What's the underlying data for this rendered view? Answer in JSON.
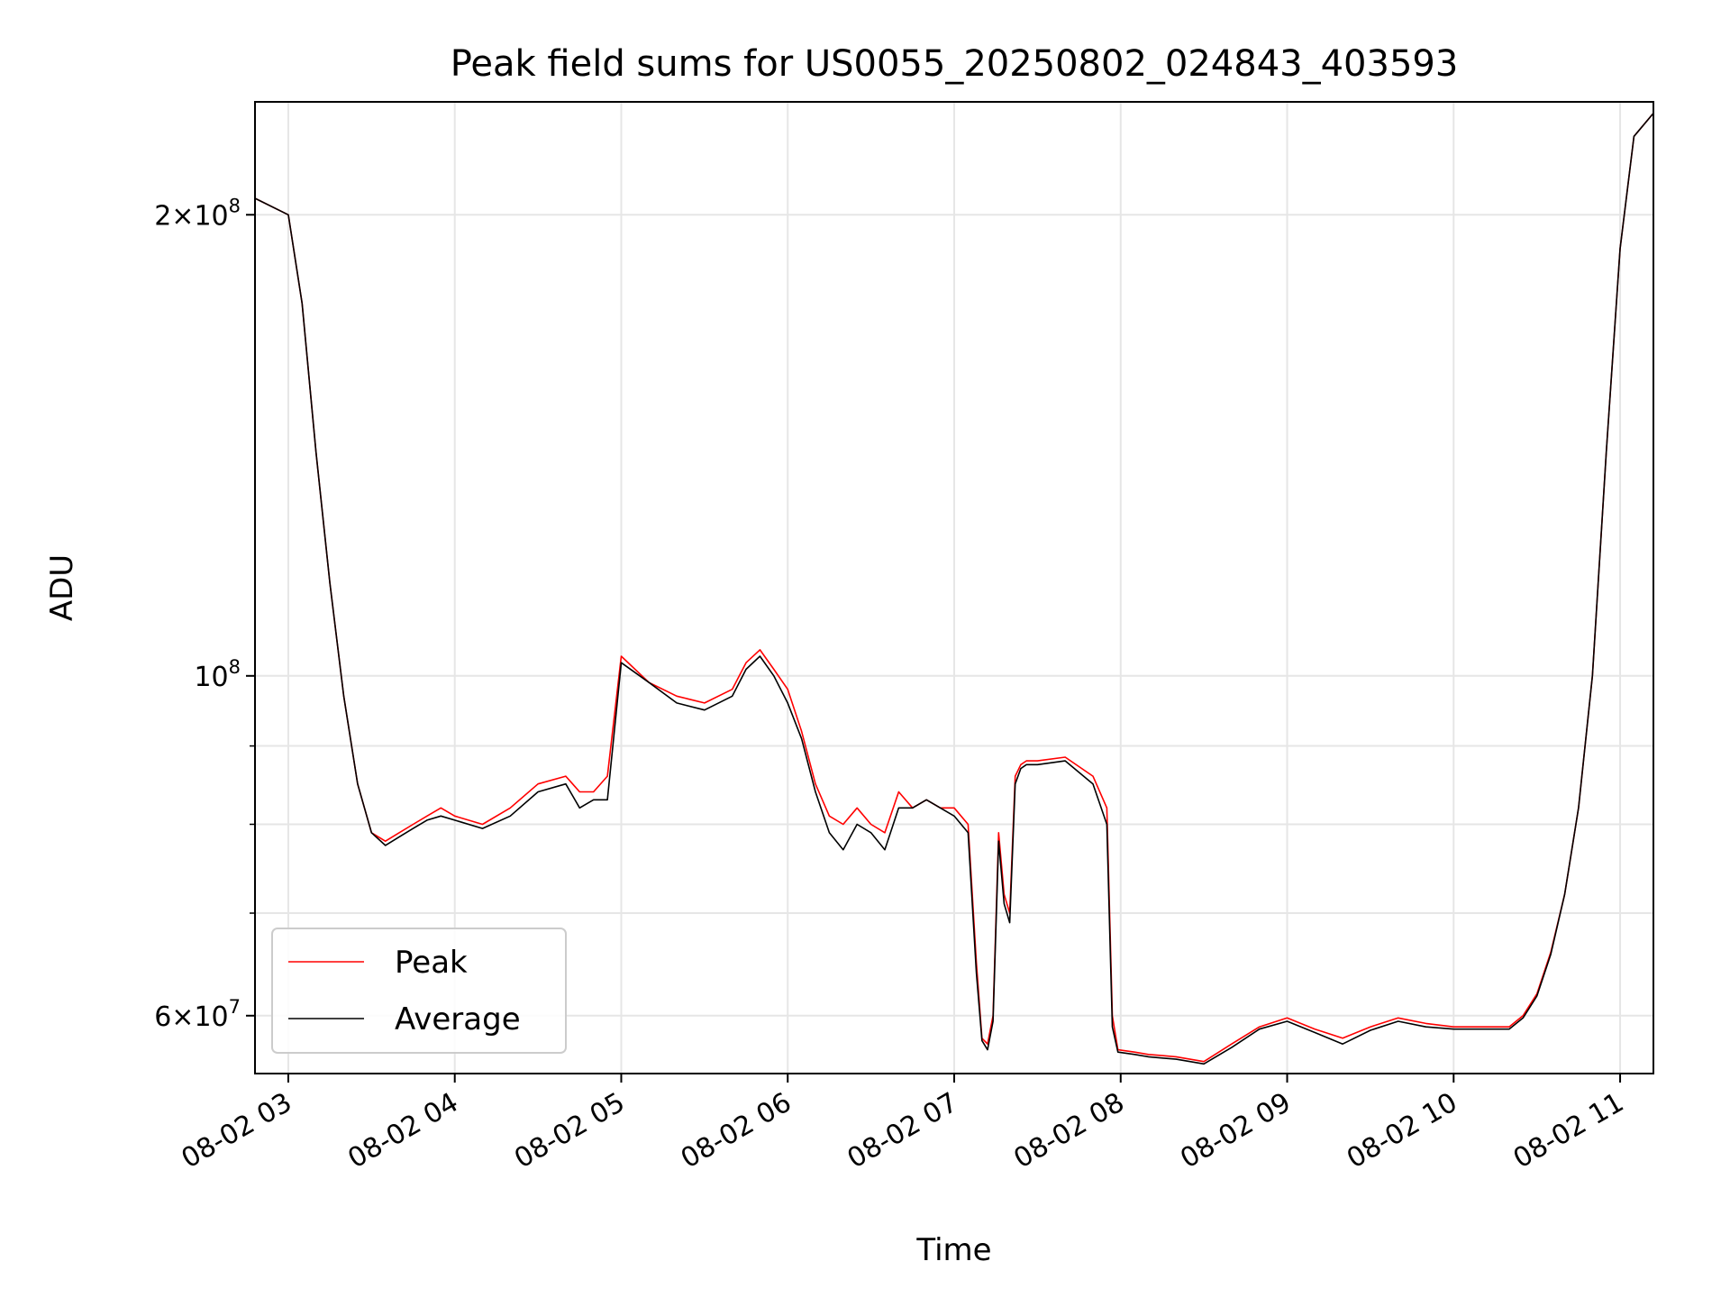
{
  "chart_data": {
    "type": "line",
    "title": "Peak field sums for US0055_20250802_024843_403593",
    "xlabel": "Time",
    "ylabel": "ADU",
    "y_scale": "log",
    "xlim": [
      "2025-08-02 02:48",
      "2025-08-02 11:12"
    ],
    "ylim": [
      55000000,
      237000000
    ],
    "x_tick_labels": [
      "08-02 03",
      "08-02 04",
      "08-02 05",
      "08-02 06",
      "08-02 07",
      "08-02 08",
      "08-02 09",
      "08-02 10",
      "08-02 11"
    ],
    "x_tick_times": [
      "2025-08-02 03:00",
      "2025-08-02 04:00",
      "2025-08-02 05:00",
      "2025-08-02 06:00",
      "2025-08-02 07:00",
      "2025-08-02 08:00",
      "2025-08-02 09:00",
      "2025-08-02 10:00",
      "2025-08-02 11:00"
    ],
    "y_major_ticks": [
      {
        "value": 60000000,
        "base": "6",
        "exp": "7"
      },
      {
        "value": 100000000,
        "base": "",
        "exp": "8"
      },
      {
        "value": 200000000,
        "base": "2",
        "exp": "8"
      }
    ],
    "y_minor_ticks": [
      70000000,
      80000000,
      90000000
    ],
    "grid": true,
    "legend": {
      "position": "lower-left"
    },
    "x": [
      "02:48",
      "03:00",
      "03:05",
      "03:10",
      "03:15",
      "03:20",
      "03:25",
      "03:30",
      "03:35",
      "03:40",
      "03:45",
      "03:50",
      "03:55",
      "04:00",
      "04:10",
      "04:20",
      "04:30",
      "04:40",
      "04:45",
      "04:50",
      "04:55",
      "05:00",
      "05:10",
      "05:20",
      "05:30",
      "05:40",
      "05:45",
      "05:50",
      "05:55",
      "06:00",
      "06:05",
      "06:10",
      "06:15",
      "06:20",
      "06:25",
      "06:30",
      "06:35",
      "06:40",
      "06:45",
      "06:50",
      "06:55",
      "07:00",
      "07:05",
      "07:08",
      "07:10",
      "07:12",
      "07:14",
      "07:16",
      "07:18",
      "07:20",
      "07:22",
      "07:24",
      "07:26",
      "07:30",
      "07:40",
      "07:50",
      "07:55",
      "07:57",
      "07:59",
      "08:05",
      "08:10",
      "08:15",
      "08:20",
      "08:25",
      "08:30",
      "08:40",
      "08:50",
      "09:00",
      "09:10",
      "09:20",
      "09:30",
      "09:40",
      "09:50",
      "10:00",
      "10:10",
      "10:20",
      "10:25",
      "10:30",
      "10:35",
      "10:40",
      "10:45",
      "10:50",
      "10:55",
      "11:00",
      "11:05",
      "11:12"
    ],
    "series": [
      {
        "name": "Peak",
        "color": "#ff0000",
        "values": [
          205000000,
          200000000,
          175000000,
          140000000,
          115000000,
          97000000,
          85000000,
          79000000,
          78000000,
          79000000,
          80000000,
          81000000,
          82000000,
          81000000,
          80000000,
          82000000,
          85000000,
          86000000,
          84000000,
          84000000,
          86000000,
          103000000,
          99000000,
          97000000,
          96000000,
          98000000,
          102000000,
          104000000,
          101000000,
          98000000,
          92000000,
          85000000,
          81000000,
          80000000,
          82000000,
          80000000,
          79000000,
          84000000,
          82000000,
          83000000,
          82000000,
          82000000,
          80000000,
          65000000,
          58000000,
          57500000,
          60000000,
          79000000,
          72000000,
          70000000,
          86000000,
          87500000,
          88000000,
          88000000,
          88500000,
          86000000,
          82000000,
          60000000,
          57000000,
          56800000,
          56600000,
          56500000,
          56400000,
          56200000,
          56000000,
          57500000,
          59000000,
          59800000,
          58800000,
          58000000,
          59000000,
          59800000,
          59300000,
          59000000,
          59000000,
          59000000,
          60000000,
          62000000,
          66000000,
          72000000,
          82000000,
          100000000,
          140000000,
          190000000,
          225000000,
          233000000
        ]
      },
      {
        "name": "Average",
        "color": "#000000",
        "values": [
          205000000,
          200000000,
          175000000,
          140000000,
          115000000,
          97000000,
          85000000,
          79000000,
          77500000,
          78500000,
          79500000,
          80500000,
          81000000,
          80500000,
          79500000,
          81000000,
          84000000,
          85000000,
          82000000,
          83000000,
          83000000,
          102000000,
          99000000,
          96000000,
          95000000,
          97000000,
          101000000,
          103000000,
          100000000,
          96000000,
          91000000,
          84000000,
          79000000,
          77000000,
          80000000,
          79000000,
          77000000,
          82000000,
          82000000,
          83000000,
          82000000,
          81000000,
          79000000,
          64000000,
          57800000,
          57000000,
          59500000,
          78000000,
          71000000,
          69000000,
          85000000,
          87000000,
          87500000,
          87500000,
          88000000,
          85000000,
          80000000,
          59000000,
          56800000,
          56600000,
          56400000,
          56300000,
          56200000,
          56000000,
          55800000,
          57200000,
          58800000,
          59500000,
          58500000,
          57500000,
          58700000,
          59500000,
          59000000,
          58800000,
          58800000,
          58800000,
          59800000,
          61800000,
          65800000,
          72000000,
          82000000,
          100000000,
          140000000,
          190000000,
          225000000,
          233000000
        ]
      }
    ]
  }
}
